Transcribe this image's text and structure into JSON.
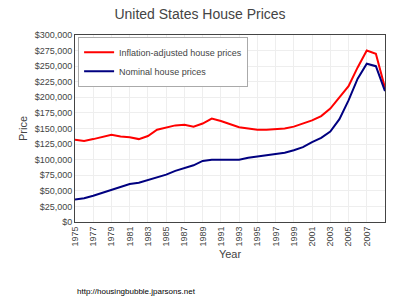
{
  "chart_data": {
    "type": "line",
    "title": "United States House Prices",
    "x_label": "Year",
    "y_label": "Price",
    "annotations": [
      "http://housingbubble.jparsons.net"
    ],
    "x": [
      1975,
      1976,
      1977,
      1978,
      1979,
      1980,
      1981,
      1982,
      1983,
      1984,
      1985,
      1986,
      1987,
      1988,
      1989,
      1990,
      1991,
      1992,
      1993,
      1994,
      1995,
      1996,
      1997,
      1998,
      1999,
      2000,
      2001,
      2002,
      2003,
      2004,
      2005,
      2006,
      2007,
      2008,
      2009
    ],
    "series": [
      {
        "name": "Inflation-adjusted house prices",
        "color": "red",
        "values": [
          132000,
          130000,
          133000,
          137000,
          140000,
          137000,
          136000,
          133000,
          138000,
          148000,
          152000,
          155000,
          156000,
          153000,
          158000,
          166000,
          162000,
          157000,
          152000,
          150000,
          148000,
          148000,
          149000,
          150000,
          153000,
          158000,
          163000,
          170000,
          182000,
          200000,
          218000,
          248000,
          275000,
          270000,
          215000
        ]
      },
      {
        "name": "Nominal house prices",
        "color": "#000080",
        "values": [
          36000,
          38000,
          42000,
          47000,
          52000,
          56000,
          61000,
          63000,
          67000,
          72000,
          76000,
          82000,
          87000,
          91000,
          98000,
          100000,
          100000,
          100000,
          100000,
          103000,
          105000,
          107000,
          109000,
          111000,
          115000,
          120000,
          128000,
          135000,
          145000,
          165000,
          195000,
          230000,
          254000,
          250000,
          210000
        ]
      }
    ],
    "xlim": [
      1975,
      2009
    ],
    "ylim": [
      0,
      300000
    ],
    "xticks": [
      1975,
      1977,
      1979,
      1981,
      1983,
      1985,
      1987,
      1989,
      1991,
      1993,
      1995,
      1997,
      1999,
      2001,
      2003,
      2005,
      2007
    ],
    "yticks": [
      {
        "value": 0,
        "label": "$0"
      },
      {
        "value": 25000,
        "label": "$25,000"
      },
      {
        "value": 50000,
        "label": "$50,000"
      },
      {
        "value": 75000,
        "label": "$75,000"
      },
      {
        "value": 100000,
        "label": "$100,000"
      },
      {
        "value": 125000,
        "label": "$125,000"
      },
      {
        "value": 150000,
        "label": "$150,000"
      },
      {
        "value": 175000,
        "label": "$175,000"
      },
      {
        "value": 200000,
        "label": "$200,000"
      },
      {
        "value": 225000,
        "label": "$225,000"
      },
      {
        "value": 250000,
        "label": "$250,000"
      },
      {
        "value": 275000,
        "label": "$275,000"
      },
      {
        "value": 300000,
        "label": "$300,000"
      }
    ],
    "grid": true,
    "legend": "upper left"
  }
}
